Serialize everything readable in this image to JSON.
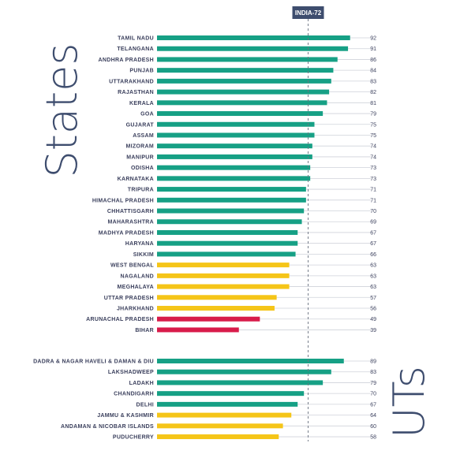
{
  "chart_data": {
    "type": "bar",
    "orientation": "horizontal",
    "reference_line": {
      "label": "INDIA-72",
      "value": 72
    },
    "axis_max": 100,
    "colors": {
      "green": "#16a085",
      "yellow": "#f5c518",
      "red": "#d81b4a",
      "marker": "#3e4d6e",
      "track": "#cfd2da"
    },
    "groups": [
      {
        "title": "States",
        "items": [
          {
            "label": "TAMIL NADU",
            "value": 92,
            "color": "green"
          },
          {
            "label": "TELANGANA",
            "value": 91,
            "color": "green"
          },
          {
            "label": "ANDHRA PRADESH",
            "value": 86,
            "color": "green"
          },
          {
            "label": "PUNJAB",
            "value": 84,
            "color": "green"
          },
          {
            "label": "UTTARAKHAND",
            "value": 83,
            "color": "green"
          },
          {
            "label": "RAJASTHAN",
            "value": 82,
            "color": "green"
          },
          {
            "label": "KERALA",
            "value": 81,
            "color": "green"
          },
          {
            "label": "GOA",
            "value": 79,
            "color": "green"
          },
          {
            "label": "GUJARAT",
            "value": 75,
            "color": "green"
          },
          {
            "label": "ASSAM",
            "value": 75,
            "color": "green"
          },
          {
            "label": "MIZORAM",
            "value": 74,
            "color": "green"
          },
          {
            "label": "MANIPUR",
            "value": 74,
            "color": "green"
          },
          {
            "label": "ODISHA",
            "value": 73,
            "color": "green"
          },
          {
            "label": "KARNATAKA",
            "value": 73,
            "color": "green"
          },
          {
            "label": "TRIPURA",
            "value": 71,
            "color": "green"
          },
          {
            "label": "HIMACHAL PRADESH",
            "value": 71,
            "color": "green"
          },
          {
            "label": "CHHATTISGARH",
            "value": 70,
            "color": "green"
          },
          {
            "label": "MAHARASHTRA",
            "value": 69,
            "color": "green"
          },
          {
            "label": "MADHYA PRADESH",
            "value": 67,
            "color": "green"
          },
          {
            "label": "HARYANA",
            "value": 67,
            "color": "green"
          },
          {
            "label": "SIKKIM",
            "value": 66,
            "color": "green"
          },
          {
            "label": "WEST BENGAL",
            "value": 63,
            "color": "yellow"
          },
          {
            "label": "NAGALAND",
            "value": 63,
            "color": "yellow"
          },
          {
            "label": "MEGHALAYA",
            "value": 63,
            "color": "yellow"
          },
          {
            "label": "UTTAR PRADESH",
            "value": 57,
            "color": "yellow"
          },
          {
            "label": "JHARKHAND",
            "value": 56,
            "color": "yellow"
          },
          {
            "label": "ARUNACHAL PRADESH",
            "value": 49,
            "color": "red"
          },
          {
            "label": "BIHAR",
            "value": 39,
            "color": "red"
          }
        ]
      },
      {
        "title": "UTs",
        "items": [
          {
            "label": "DADRA & NAGAR HAVELI & DAMAN & DIU",
            "value": 89,
            "color": "green"
          },
          {
            "label": "LAKSHADWEEP",
            "value": 83,
            "color": "green"
          },
          {
            "label": "LADAKH",
            "value": 79,
            "color": "green"
          },
          {
            "label": "CHANDIGARH",
            "value": 70,
            "color": "green"
          },
          {
            "label": "DELHI",
            "value": 67,
            "color": "green"
          },
          {
            "label": "JAMMU & KASHMIR",
            "value": 64,
            "color": "yellow"
          },
          {
            "label": "ANDAMAN & NICOBAR ISLANDS",
            "value": 60,
            "color": "yellow"
          },
          {
            "label": "PUDUCHERRY",
            "value": 58,
            "color": "yellow"
          }
        ]
      }
    ]
  }
}
